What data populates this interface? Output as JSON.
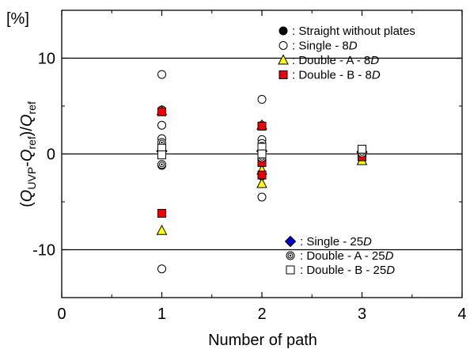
{
  "chart_data": {
    "type": "scatter",
    "unit_label": "[%]",
    "xlabel": "Number of path",
    "ylabel": {
      "open": "(",
      "q1": "Q",
      "s1": "UVP",
      "minus": "-",
      "q2": "Q",
      "s2": "ref",
      "close": ")/",
      "q3": "Q",
      "s3": "ref"
    },
    "xlim": [
      0,
      4
    ],
    "ylim": [
      -15,
      15
    ],
    "x_ticks": [
      "0",
      "1",
      "2",
      "3",
      "4"
    ],
    "y_ticks": [
      "10",
      "0",
      "-10"
    ],
    "reference_lines": [
      10,
      0,
      -10
    ],
    "colors": {
      "blue": "#0000cc",
      "red": "#ee0000",
      "yellow": "#ffff00",
      "black": "#000000",
      "white": "#ffffff"
    },
    "legend": {
      "top_right": [
        {
          "marker": "filled-circle",
          "prefix": ": Straight without plates",
          "italic": ""
        },
        {
          "marker": "open-circle",
          "prefix": ": Single - 8",
          "italic": "D"
        },
        {
          "marker": "yellow-triangle",
          "prefix": ": Double - A - 8",
          "italic": "D"
        },
        {
          "marker": "red-square",
          "prefix": ": Double - B - 8",
          "italic": "D"
        }
      ],
      "bottom_right": [
        {
          "marker": "blue-diamond",
          "prefix": ": Single - 25",
          "italic": "D"
        },
        {
          "marker": "bullseye",
          "prefix": ": Double - A - 25",
          "italic": "D"
        },
        {
          "marker": "open-square",
          "prefix": ": Double - B - 25",
          "italic": "D"
        }
      ]
    },
    "series": [
      {
        "name": "Straight without plates",
        "marker": "filled-circle",
        "points": [
          [
            1,
            0.3
          ],
          [
            2,
            0.2
          ],
          [
            3,
            0.3
          ]
        ]
      },
      {
        "name": "Single - 8D",
        "marker": "open-circle",
        "points": [
          [
            1,
            8.3
          ],
          [
            1,
            4.6
          ],
          [
            1,
            3.0
          ],
          [
            1,
            1.6
          ],
          [
            1,
            0.9
          ],
          [
            1,
            -1.2
          ],
          [
            1,
            -12.0
          ],
          [
            2,
            5.7
          ],
          [
            2,
            3.0
          ],
          [
            2,
            1.5
          ],
          [
            2,
            1.1
          ],
          [
            2,
            0.2
          ],
          [
            2,
            -2.3
          ],
          [
            2,
            -4.5
          ],
          [
            3,
            0.3
          ]
        ]
      },
      {
        "name": "Double - A - 8D",
        "marker": "yellow-triangle",
        "points": [
          [
            1,
            4.5
          ],
          [
            1,
            -8.0
          ],
          [
            2,
            3.0
          ],
          [
            2,
            -1.7
          ],
          [
            2,
            -3.1
          ],
          [
            3,
            -0.7
          ]
        ]
      },
      {
        "name": "Double - B - 8D",
        "marker": "red-square",
        "points": [
          [
            1,
            4.4
          ],
          [
            1,
            -6.2
          ],
          [
            2,
            2.9
          ],
          [
            2,
            -0.9
          ],
          [
            2,
            -2.2
          ],
          [
            3,
            -0.3
          ]
        ]
      },
      {
        "name": "Single - 25D",
        "marker": "blue-diamond",
        "points": [
          [
            1,
            0.3
          ],
          [
            2,
            0.3
          ],
          [
            3,
            0.2
          ]
        ]
      },
      {
        "name": "Double - A - 25D",
        "marker": "bullseye",
        "points": [
          [
            1,
            -1.1
          ],
          [
            1,
            1.2
          ],
          [
            2,
            0.8
          ],
          [
            2,
            -0.4
          ],
          [
            3,
            0.1
          ]
        ]
      },
      {
        "name": "Double - B - 25D",
        "marker": "open-square",
        "points": [
          [
            1,
            0.6
          ],
          [
            1,
            -0.1
          ],
          [
            2,
            0.7
          ],
          [
            2,
            0.0
          ],
          [
            3,
            0.5
          ]
        ]
      }
    ]
  }
}
